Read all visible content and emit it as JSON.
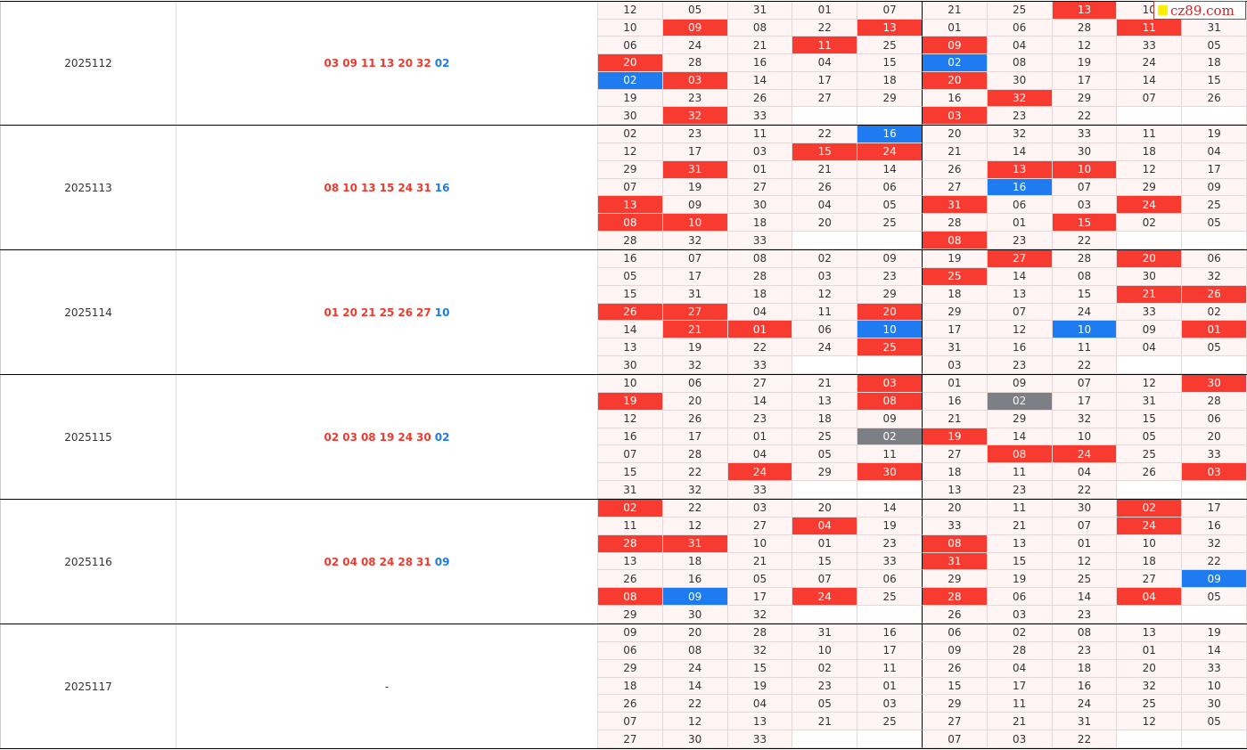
{
  "logo": {
    "text": "cz89.com"
  },
  "colors": {
    "red": "#f73b30",
    "blue": "#1e7bf0",
    "gray": "#7c7f83"
  },
  "legend_note": "cell suffix r=red highlight, b=blue highlight, g=gray highlight",
  "periods": [
    {
      "issue": "2025112",
      "red": [
        "03",
        "09",
        "11",
        "13",
        "20",
        "32"
      ],
      "blue": "02",
      "grid": [
        [
          "12",
          "05",
          "31",
          "01",
          "07",
          "21",
          "25",
          "13r",
          "10",
          ""
        ],
        [
          "10",
          "09r",
          "08",
          "22",
          "13r",
          "01",
          "06",
          "28",
          "11r",
          "31"
        ],
        [
          "06",
          "24",
          "21",
          "11r",
          "25",
          "09r",
          "04",
          "12",
          "33",
          "05"
        ],
        [
          "20r",
          "28",
          "16",
          "04",
          "15",
          "02b",
          "08",
          "19",
          "24",
          "18"
        ],
        [
          "02b",
          "03r",
          "14",
          "17",
          "18",
          "20r",
          "30",
          "17",
          "14",
          "15"
        ],
        [
          "19",
          "23",
          "26",
          "27",
          "29",
          "16",
          "32r",
          "29",
          "07",
          "26"
        ],
        [
          "30",
          "32r",
          "33",
          "",
          "",
          "03r",
          "23",
          "22",
          "",
          ""
        ]
      ]
    },
    {
      "issue": "2025113",
      "red": [
        "08",
        "10",
        "13",
        "15",
        "24",
        "31"
      ],
      "blue": "16",
      "grid": [
        [
          "02",
          "23",
          "11",
          "22",
          "16b",
          "20",
          "32",
          "33",
          "11",
          "19"
        ],
        [
          "12",
          "17",
          "03",
          "15r",
          "24r",
          "21",
          "14",
          "30",
          "18",
          "04"
        ],
        [
          "29",
          "31r",
          "01",
          "21",
          "14",
          "26",
          "13r",
          "10r",
          "12",
          "17"
        ],
        [
          "07",
          "19",
          "27",
          "26",
          "06",
          "27",
          "16b",
          "07",
          "29",
          "09"
        ],
        [
          "13r",
          "09",
          "30",
          "04",
          "05",
          "31r",
          "06",
          "03",
          "24r",
          "25"
        ],
        [
          "08r",
          "10r",
          "18",
          "20",
          "25",
          "28",
          "01",
          "15r",
          "02",
          "05"
        ],
        [
          "28",
          "32",
          "33",
          "",
          "",
          "08r",
          "23",
          "22",
          "",
          ""
        ]
      ]
    },
    {
      "issue": "2025114",
      "red": [
        "01",
        "20",
        "21",
        "25",
        "26",
        "27"
      ],
      "blue": "10",
      "grid": [
        [
          "16",
          "07",
          "08",
          "02",
          "09",
          "19",
          "27r",
          "28",
          "20r",
          "06"
        ],
        [
          "05",
          "17",
          "28",
          "03",
          "23",
          "25r",
          "14",
          "08",
          "30",
          "32"
        ],
        [
          "15",
          "31",
          "18",
          "12",
          "29",
          "18",
          "13",
          "15",
          "21r",
          "26r"
        ],
        [
          "26r",
          "27r",
          "04",
          "11",
          "20r",
          "29",
          "07",
          "24",
          "33",
          "02"
        ],
        [
          "14",
          "21r",
          "01r",
          "06",
          "10b",
          "17",
          "12",
          "10b",
          "09",
          "01r"
        ],
        [
          "13",
          "19",
          "22",
          "24",
          "25r",
          "31",
          "16",
          "11",
          "04",
          "05"
        ],
        [
          "30",
          "32",
          "33",
          "",
          "",
          "03",
          "23",
          "22",
          "",
          ""
        ]
      ]
    },
    {
      "issue": "2025115",
      "red": [
        "02",
        "03",
        "08",
        "19",
        "24",
        "30"
      ],
      "blue": "02",
      "grid": [
        [
          "10",
          "06",
          "27",
          "21",
          "03r",
          "01",
          "09",
          "07",
          "12",
          "30r"
        ],
        [
          "19r",
          "20",
          "14",
          "13",
          "08r",
          "16",
          "02g",
          "17",
          "31",
          "28"
        ],
        [
          "12",
          "26",
          "23",
          "18",
          "09",
          "21",
          "29",
          "32",
          "15",
          "06"
        ],
        [
          "16",
          "17",
          "01",
          "25",
          "02g",
          "19r",
          "14",
          "10",
          "05",
          "20"
        ],
        [
          "07",
          "28",
          "04",
          "05",
          "11",
          "27",
          "08r",
          "24r",
          "25",
          "33"
        ],
        [
          "15",
          "22",
          "24r",
          "29",
          "30r",
          "18",
          "11",
          "04",
          "26",
          "03r"
        ],
        [
          "31",
          "32",
          "33",
          "",
          "",
          "13",
          "23",
          "22",
          "",
          ""
        ]
      ]
    },
    {
      "issue": "2025116",
      "red": [
        "02",
        "04",
        "08",
        "24",
        "28",
        "31"
      ],
      "blue": "09",
      "grid": [
        [
          "02r",
          "22",
          "03",
          "20",
          "14",
          "20",
          "11",
          "30",
          "02r",
          "17"
        ],
        [
          "11",
          "12",
          "27",
          "04r",
          "19",
          "33",
          "21",
          "07",
          "24r",
          "16"
        ],
        [
          "28r",
          "31r",
          "10",
          "01",
          "23",
          "08r",
          "13",
          "01",
          "10",
          "32"
        ],
        [
          "13",
          "18",
          "21",
          "15",
          "33",
          "31r",
          "15",
          "12",
          "18",
          "22"
        ],
        [
          "26",
          "16",
          "05",
          "07",
          "06",
          "29",
          "19",
          "25",
          "27",
          "09b"
        ],
        [
          "08r",
          "09b",
          "17",
          "24r",
          "25",
          "28r",
          "06",
          "14",
          "04r",
          "05"
        ],
        [
          "29",
          "30",
          "32",
          "",
          "",
          "26",
          "03",
          "23",
          "",
          ""
        ]
      ]
    },
    {
      "issue": "2025117",
      "red": [],
      "blue": "",
      "placeholder": "-",
      "grid": [
        [
          "09",
          "20",
          "28",
          "31",
          "16",
          "06",
          "02",
          "08",
          "13",
          "19"
        ],
        [
          "06",
          "08",
          "32",
          "10",
          "17",
          "09",
          "28",
          "23",
          "01",
          "14"
        ],
        [
          "29",
          "24",
          "15",
          "02",
          "11",
          "26",
          "04",
          "18",
          "20",
          "33"
        ],
        [
          "18",
          "14",
          "19",
          "23",
          "01",
          "15",
          "17",
          "16",
          "32",
          "10"
        ],
        [
          "26",
          "22",
          "04",
          "05",
          "03",
          "29",
          "11",
          "24",
          "25",
          "30"
        ],
        [
          "07",
          "12",
          "13",
          "21",
          "25",
          "27",
          "21",
          "31",
          "12",
          "05"
        ],
        [
          "27",
          "30",
          "33",
          "",
          "",
          "07",
          "03",
          "22",
          "",
          ""
        ]
      ]
    }
  ]
}
